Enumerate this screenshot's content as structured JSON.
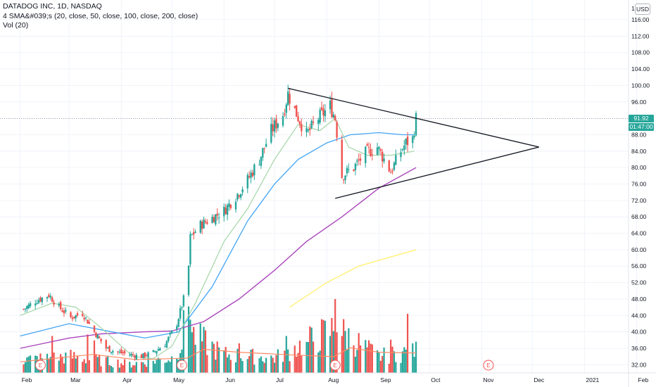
{
  "header": {
    "title": "DATADOG INC, 1D, NASDAQ",
    "indicator_sma": "4 SMA&#039;s (20, close, 50, close, 100, close, 200, close)",
    "indicator_vol": "Vol (20)"
  },
  "currency_label": "USD",
  "price_labels": {
    "last_price": "91.92",
    "countdown": "01:47:00"
  },
  "colors": {
    "up": "#26a69a",
    "down": "#ef5350",
    "sma20": "#a5d6a7",
    "sma50": "#42a5f5",
    "sma100": "#ab47bc",
    "sma200": "#fff176",
    "vol_up": "#26a69a",
    "vol_down": "#ef5350",
    "vol_ma": "#ff8a65",
    "trendline": "#131722",
    "grid": "#f0f3fa",
    "earnings": "#ef5350",
    "last_price_tag": "#26a69a",
    "countdown_tag": "#26a69a"
  },
  "chart_data": {
    "type": "candlestick",
    "x_axis": {
      "ticks": [
        "Feb",
        "Mar",
        "Apr",
        "May",
        "Jun",
        "Jul",
        "Aug",
        "Sep",
        "Oct",
        "Nov",
        "Dec",
        "2021",
        "Feb"
      ]
    },
    "y_axis": {
      "scale": "linear",
      "range": [
        30,
        122
      ],
      "ticks": [
        "32.00",
        "36.00",
        "40.00",
        "44.00",
        "48.00",
        "52.00",
        "56.00",
        "60.00",
        "64.00",
        "68.00",
        "72.00",
        "76.00",
        "80.00",
        "84.00",
        "88.00",
        "92.00",
        "96.00",
        "100.00",
        "104.00",
        "108.00",
        "112.00",
        "116.00"
      ],
      "top_clipped_label": "1..."
    },
    "grid": true,
    "price_path": [
      [
        "2020-02-03",
        45.5
      ],
      [
        "2020-02-10",
        47.5
      ],
      [
        "2020-02-18",
        49
      ],
      [
        "2020-02-24",
        46
      ],
      [
        "2020-03-02",
        43.5
      ],
      [
        "2020-03-09",
        44.5
      ],
      [
        "2020-03-16",
        40
      ],
      [
        "2020-03-23",
        36
      ],
      [
        "2020-03-30",
        35
      ],
      [
        "2020-04-06",
        34.5
      ],
      [
        "2020-04-13",
        34
      ],
      [
        "2020-04-20",
        35
      ],
      [
        "2020-04-27",
        37
      ],
      [
        "2020-05-04",
        42
      ],
      [
        "2020-05-08",
        48
      ],
      [
        "2020-05-11",
        56
      ],
      [
        "2020-05-12",
        63
      ],
      [
        "2020-05-18",
        66
      ],
      [
        "2020-05-26",
        68
      ],
      [
        "2020-06-01",
        69.5
      ],
      [
        "2020-06-08",
        73
      ],
      [
        "2020-06-15",
        77
      ],
      [
        "2020-06-22",
        82
      ],
      [
        "2020-06-29",
        89
      ],
      [
        "2020-07-06",
        93
      ],
      [
        "2020-07-09",
        98
      ],
      [
        "2020-07-13",
        94
      ],
      [
        "2020-07-20",
        88
      ],
      [
        "2020-07-27",
        92
      ],
      [
        "2020-08-03",
        95
      ],
      [
        "2020-08-06",
        92
      ],
      [
        "2020-08-10",
        78
      ],
      [
        "2020-08-17",
        80
      ],
      [
        "2020-08-24",
        83.5
      ],
      [
        "2020-08-31",
        85
      ],
      [
        "2020-09-08",
        79
      ],
      [
        "2020-09-14",
        84
      ],
      [
        "2020-09-17",
        86
      ],
      [
        "2020-09-21",
        87
      ],
      [
        "2020-09-23",
        91.92
      ]
    ],
    "candle_noise": 1.2,
    "sma20": [
      [
        "2020-02-01",
        44
      ],
      [
        "2020-02-20",
        47
      ],
      [
        "2020-03-05",
        46
      ],
      [
        "2020-03-20",
        41
      ],
      [
        "2020-04-08",
        34
      ],
      [
        "2020-04-20",
        33.5
      ],
      [
        "2020-05-01",
        36.5
      ],
      [
        "2020-05-15",
        47
      ],
      [
        "2020-06-01",
        62
      ],
      [
        "2020-06-15",
        70
      ],
      [
        "2020-07-01",
        82
      ],
      [
        "2020-07-15",
        90.5
      ],
      [
        "2020-07-28",
        89
      ],
      [
        "2020-08-06",
        92
      ],
      [
        "2020-08-14",
        85
      ],
      [
        "2020-08-25",
        83
      ],
      [
        "2020-09-08",
        83
      ],
      [
        "2020-09-22",
        84
      ]
    ],
    "sma50": [
      [
        "2020-02-01",
        39
      ],
      [
        "2020-03-01",
        42
      ],
      [
        "2020-03-20",
        40.5
      ],
      [
        "2020-04-15",
        38.5
      ],
      [
        "2020-05-05",
        40
      ],
      [
        "2020-05-25",
        51
      ],
      [
        "2020-06-15",
        67
      ],
      [
        "2020-07-01",
        76
      ],
      [
        "2020-07-15",
        82
      ],
      [
        "2020-08-01",
        86
      ],
      [
        "2020-08-15",
        88
      ],
      [
        "2020-09-01",
        88.5
      ],
      [
        "2020-09-15",
        88
      ],
      [
        "2020-09-22",
        88
      ]
    ],
    "sma100": [
      [
        "2020-02-01",
        36
      ],
      [
        "2020-03-01",
        38.5
      ],
      [
        "2020-03-20",
        39.5
      ],
      [
        "2020-04-15",
        40
      ],
      [
        "2020-05-01",
        40.2
      ],
      [
        "2020-05-20",
        42.5
      ],
      [
        "2020-06-10",
        48
      ],
      [
        "2020-07-01",
        55
      ],
      [
        "2020-07-20",
        62
      ],
      [
        "2020-08-10",
        68
      ],
      [
        "2020-09-01",
        75
      ],
      [
        "2020-09-23",
        80
      ]
    ],
    "sma200": [
      [
        "2020-07-10",
        46
      ],
      [
        "2020-08-01",
        52
      ],
      [
        "2020-08-20",
        56
      ],
      [
        "2020-09-23",
        60
      ]
    ],
    "trendlines": [
      {
        "name": "upper",
        "from": [
          "2020-07-09",
          99.3
        ],
        "to": [
          "2020-12-05",
          85
        ]
      },
      {
        "name": "lower",
        "from": [
          "2020-08-06",
          72.5
        ],
        "to": [
          "2020-12-05",
          85
        ]
      }
    ],
    "volume": {
      "scale_top": 48,
      "bars_path": [
        [
          "2020-02-03",
          0.18
        ],
        [
          "2020-03-02",
          0.22
        ],
        [
          "2020-04-06",
          0.12
        ],
        [
          "2020-05-01",
          0.2
        ],
        [
          "2020-05-11",
          0.55
        ],
        [
          "2020-06-01",
          0.25
        ],
        [
          "2020-07-01",
          0.2
        ],
        [
          "2020-08-06",
          0.6
        ],
        [
          "2020-09-01",
          0.22
        ],
        [
          "2020-09-23",
          0.3
        ]
      ],
      "spikes": [
        [
          "2020-02-20",
          0.5
        ],
        [
          "2020-03-12",
          0.52
        ],
        [
          "2020-03-16",
          0.44
        ],
        [
          "2020-05-08",
          0.85
        ],
        [
          "2020-05-11",
          0.9
        ],
        [
          "2020-05-12",
          0.72
        ],
        [
          "2020-05-13",
          0.55
        ],
        [
          "2020-06-10",
          0.4
        ],
        [
          "2020-07-08",
          0.5
        ],
        [
          "2020-07-20",
          0.42
        ],
        [
          "2020-08-06",
          1.0
        ],
        [
          "2020-08-07",
          0.55
        ],
        [
          "2020-08-10",
          0.5
        ],
        [
          "2020-09-08",
          0.45
        ],
        [
          "2020-09-18",
          0.8
        ],
        [
          "2020-09-21",
          0.4
        ]
      ],
      "ma_line": [
        [
          "2020-02-01",
          0.15
        ],
        [
          "2020-03-15",
          0.25
        ],
        [
          "2020-04-10",
          0.18
        ],
        [
          "2020-05-10",
          0.2
        ],
        [
          "2020-05-20",
          0.32
        ],
        [
          "2020-06-10",
          0.28
        ],
        [
          "2020-07-15",
          0.24
        ],
        [
          "2020-08-05",
          0.22
        ],
        [
          "2020-08-15",
          0.34
        ],
        [
          "2020-09-01",
          0.28
        ],
        [
          "2020-09-23",
          0.27
        ]
      ]
    },
    "earnings_markers": [
      {
        "date": "2020-02-13",
        "label": "E"
      },
      {
        "date": "2020-05-07",
        "label": "E"
      },
      {
        "date": "2020-08-06",
        "label": "E"
      },
      {
        "date": "2020-11-05",
        "label": "E"
      }
    ]
  }
}
